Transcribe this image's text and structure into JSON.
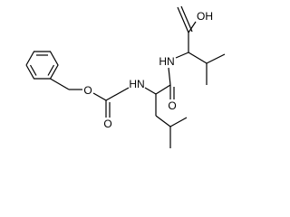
{
  "labels": [
    "OH",
    "HN",
    "HN",
    "O",
    "O",
    "O"
  ]
}
